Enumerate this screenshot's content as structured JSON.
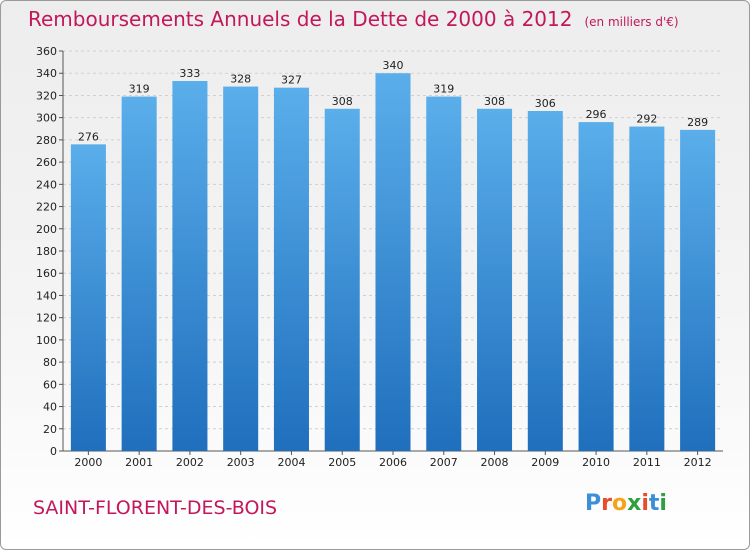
{
  "title": "Remboursements Annuels de la Dette de 2000 à 2012",
  "unit": "(en milliers d'€)",
  "commune": "SAINT-FLORENT-DES-BOIS",
  "logo": {
    "text": "Proxiti",
    "colors": [
      "#3b8fd6",
      "#e94b2b",
      "#f6a21a",
      "#2e9f3e",
      "#e94b2b",
      "#3b8fd6",
      "#2e9f3e"
    ]
  },
  "colors": {
    "bar_top": "#5aaeea",
    "bar_bottom": "#1f6fbd",
    "title": "#c2185b",
    "grid": "#d0d0d0"
  },
  "chart_data": {
    "type": "bar",
    "title": "Remboursements Annuels de la Dette de 2000 à 2012",
    "categories": [
      "2000",
      "2001",
      "2002",
      "2003",
      "2004",
      "2005",
      "2006",
      "2007",
      "2008",
      "2009",
      "2010",
      "2011",
      "2012"
    ],
    "values": [
      276,
      319,
      333,
      328,
      327,
      308,
      340,
      319,
      308,
      306,
      296,
      292,
      289
    ],
    "ylim": [
      0,
      360
    ],
    "yticks": [
      0,
      20,
      40,
      60,
      80,
      100,
      120,
      140,
      160,
      180,
      200,
      220,
      240,
      260,
      280,
      300,
      320,
      340,
      360
    ],
    "xlabel": "",
    "ylabel": "",
    "grid": true,
    "data_labels": true
  }
}
